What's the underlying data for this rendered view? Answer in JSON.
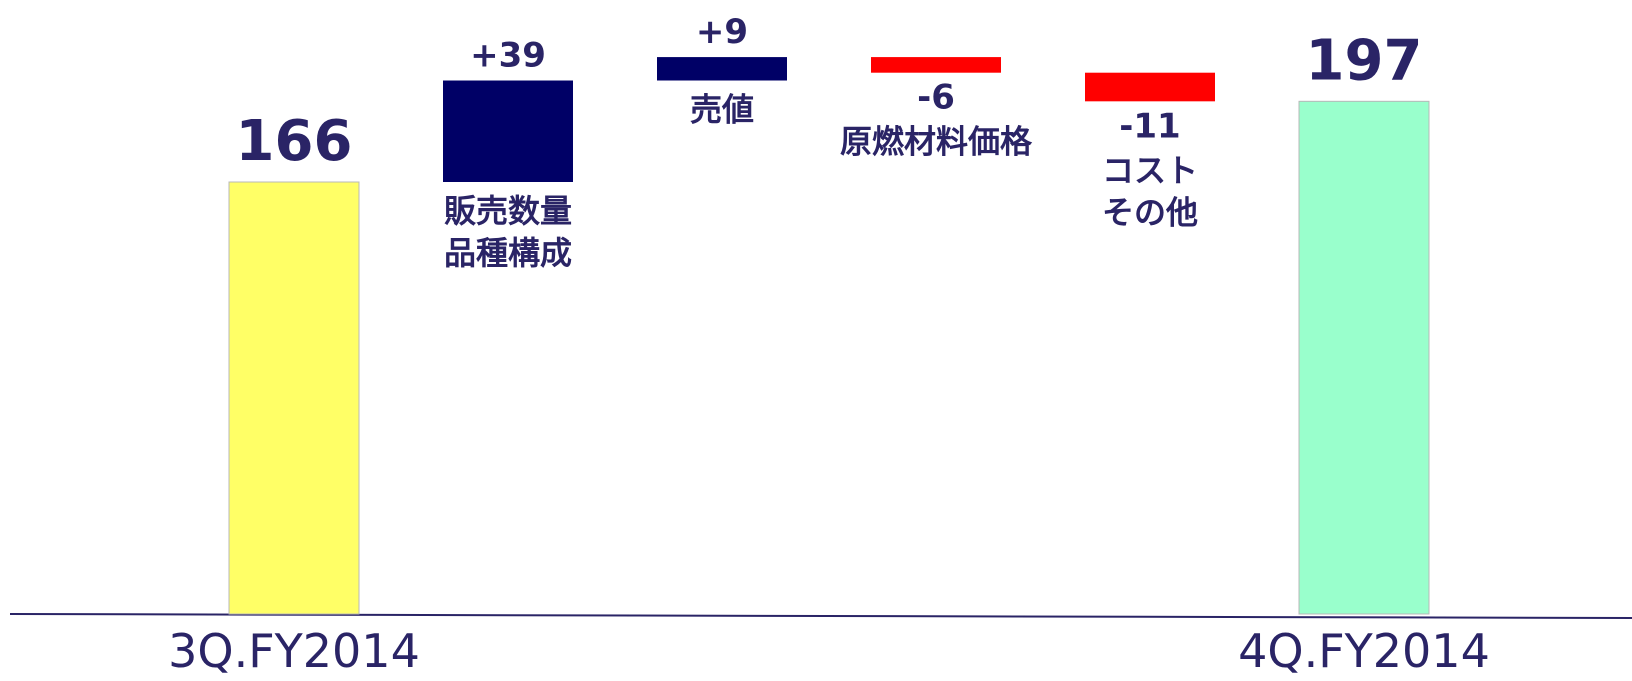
{
  "chart_data": {
    "type": "bar",
    "subtype": "waterfall",
    "categories": [
      "3Q.FY2014",
      "販売数量\n品種構成",
      "売値",
      "原燃材料価格",
      "コスト\nその他",
      "4Q.FY2014"
    ],
    "values": [
      166,
      39,
      9,
      -6,
      -11,
      197
    ],
    "value_labels": [
      "166",
      "+39",
      "+9",
      "-6",
      "-11",
      "197"
    ],
    "kinds": [
      "total",
      "delta",
      "delta",
      "delta",
      "delta",
      "total"
    ],
    "axis_labels": [
      "3Q.FY2014",
      "",
      "",
      "",
      "",
      "4Q.FY2014"
    ],
    "colors": {
      "start_total": "#ffff66",
      "end_total": "#99ffcc",
      "increase": "#000066",
      "decrease": "#ff0000",
      "text": "#2a2466",
      "axis": "#2a2466"
    },
    "title": "",
    "xlabel": "",
    "ylabel": "",
    "grid": false,
    "legend": "none"
  }
}
